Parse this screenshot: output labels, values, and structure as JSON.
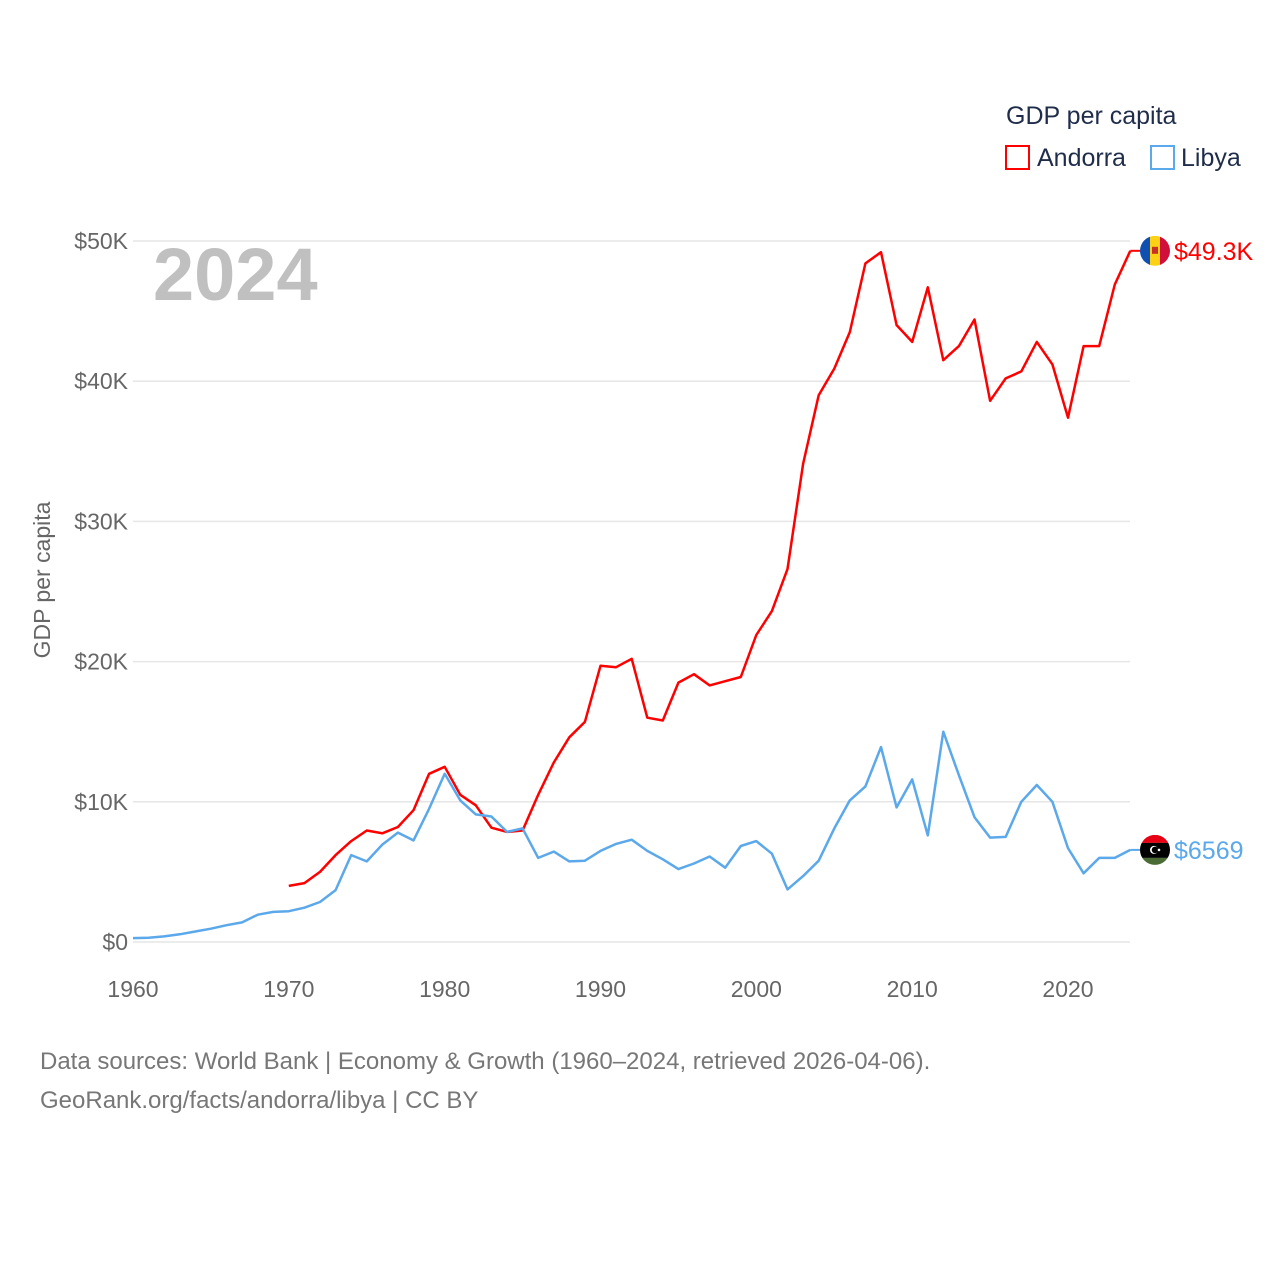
{
  "chart_data": {
    "type": "line",
    "title": "",
    "ylabel": "GDP per capita",
    "xlabel": "",
    "year_label": "2024",
    "xlim": [
      1960,
      2024
    ],
    "ylim": [
      0,
      50000
    ],
    "xticks": [
      1960,
      1970,
      1980,
      1990,
      2000,
      2010,
      2020
    ],
    "yticks": [
      0,
      10000,
      20000,
      30000,
      40000,
      50000
    ],
    "ytick_labels": [
      "$0",
      "$10K",
      "$20K",
      "$30K",
      "$40K",
      "$50K"
    ],
    "grid": true,
    "legend": {
      "title": "GDP per capita",
      "placement": "top-right"
    },
    "series": [
      {
        "name": "Andorra",
        "color": "#ff0000",
        "end_label": "$49.3K",
        "flag": "andorra-flag",
        "start_year": 1970,
        "values": [
          4000,
          4200,
          5000,
          6200,
          7200,
          7950,
          7750,
          8200,
          9400,
          12000,
          12500,
          10500,
          9750,
          8150,
          7850,
          7950,
          10500,
          12800,
          14600,
          15700,
          19700,
          19600,
          20200,
          16000,
          15800,
          18500,
          19100,
          18300,
          18600,
          18900,
          21900,
          23600,
          26600,
          34100,
          39000,
          40900,
          43500,
          48400,
          49200,
          44000,
          42800,
          46700,
          41500,
          42500,
          44400,
          38600,
          40200,
          40700,
          42800,
          41200,
          37400,
          42500,
          42500,
          46900,
          49300
        ]
      },
      {
        "name": "Libya",
        "color": "#5ba8ea",
        "end_label": "$6569",
        "flag": "libya-flag",
        "start_year": 1960,
        "values": [
          280,
          300,
          400,
          550,
          750,
          950,
          1200,
          1400,
          1950,
          2150,
          2200,
          2450,
          2850,
          3700,
          6200,
          5750,
          6950,
          7800,
          7250,
          9500,
          12000,
          10100,
          9100,
          8950,
          7850,
          8100,
          6000,
          6450,
          5750,
          5800,
          6500,
          7000,
          7300,
          6500,
          5900,
          5200,
          5600,
          6100,
          5300,
          6850,
          7200,
          6300,
          3750,
          4700,
          5800,
          8100,
          10100,
          11100,
          13900,
          9600,
          11600,
          7600,
          15000,
          11900,
          8900,
          7450,
          7500,
          10000,
          11200,
          10000,
          6700,
          4900,
          6000,
          6000,
          6569
        ]
      }
    ]
  },
  "footer": {
    "line1": "Data sources: World Bank | Economy & Growth (1960–2024, retrieved 2026-04-06).",
    "line2": "GeoRank.org/facts/andorra/libya | CC BY"
  }
}
